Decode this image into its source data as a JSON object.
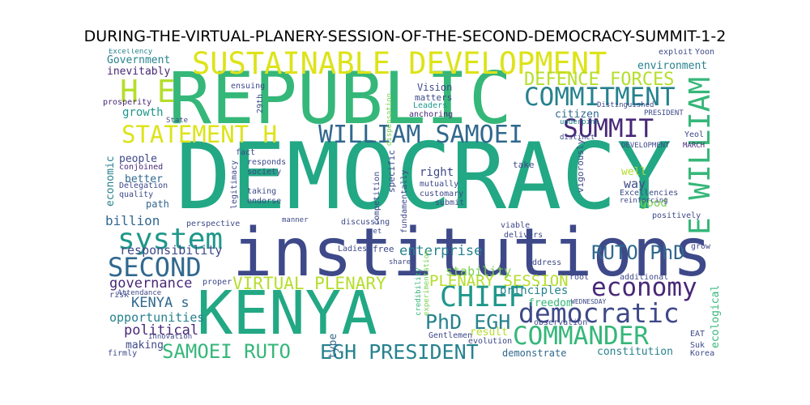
{
  "title": "DURING-THE-VIRTUAL-PLANERY-SESSION-OF-THE-SECOND-DEMOCRACY-SUMMIT-1-2",
  "words": {
    "democracy": "DEMOCRACY",
    "republic": "REPUBLIC",
    "institutions": "institutions",
    "kenya": "KENYA",
    "sustainable_development": "SUSTAINABLE DEVELOPMENT",
    "h_e": "H E",
    "commitment": "COMMITMENT",
    "defence_forces": "DEFENCE FORCES",
    "william_samoei": "WILLIAM SAMOEI",
    "statement_h": "STATEMENT H",
    "summit": "SUMMIT",
    "e_william": "E WILLIAM",
    "system": "system",
    "second": "SECOND",
    "ruto_phd": "RUTO PhD",
    "economy": "economy",
    "chief": "CHIEF",
    "democratic": "democratic",
    "phd_egh": "PhD EGH",
    "commander": "COMMANDER",
    "egh_president": "EGH PRESIDENT",
    "samoei_ruto": "SAMOEI RUTO",
    "virtual_plenary": "VIRTUAL PLENARY",
    "plenary_session": "PLENARY SESSION",
    "governance": "governance",
    "kenya_s": "KENYA s",
    "political": "political",
    "opportunities": "opportunities",
    "responsibility": "responsibility",
    "billion": "billion",
    "enterprise": "enterprise",
    "stability": "stability",
    "principles": "principles",
    "freedom": "freedom",
    "constitution": "constitution",
    "demonstrate": "demonstrate",
    "result": "result",
    "type": "type",
    "making": "making",
    "good": "good",
    "way": "way",
    "well": "well",
    "right": "right",
    "growth": "growth",
    "citizen": "citizen",
    "environment": "environment",
    "economic": "economic",
    "ecological": "ecological",
    "government": "Government",
    "inevitably": "inevitably",
    "prosperity": "prosperity",
    "people": "people",
    "better": "better",
    "path": "path",
    "vision": "Vision",
    "matters": "matters",
    "leaders": "Leaders",
    "anchoring": "anchoring",
    "ensuing": "ensuing",
    "29th": "29th",
    "excellency": "Excellency",
    "exploit": "exploit",
    "yoon": "Yoon",
    "distinguished": "Distinguished",
    "president": "PRESIDENT",
    "yeol": "Yeol",
    "development": "DEVELOPMENT",
    "march": "MARCH",
    "distinct": "distinct",
    "underpins": "underpins",
    "vigorously": "vigorously",
    "take": "take",
    "excellencies": "Excellencies",
    "reinforcing": "reinforcing",
    "positively": "positively",
    "additional": "additional",
    "address": "address",
    "viable": "viable",
    "delivers": "delivers",
    "submit": "submit",
    "customary": "customary",
    "mutually": "mutually",
    "fundamentally": "fundamentally",
    "specific": "specific",
    "competition": "competition",
    "free": "free",
    "shared": "shared",
    "discussing": "discussing",
    "set": "set",
    "ladies": "Ladies",
    "gentlemen": "Gentlemen",
    "evolution": "evolution",
    "observation": "observation",
    "wednesday": "WEDNESDAY",
    "root": "root",
    "suk": "Suk",
    "korea": "Korea",
    "eat": "EAT",
    "grow": "grow",
    "fact": "fact",
    "responds": "responds",
    "society": "society",
    "taking": "taking",
    "endorse": "endorse",
    "legitimacy": "legitimacy",
    "conjoined": "conjoined",
    "quality": "quality",
    "delegation": "Delegation",
    "perspective": "perspective",
    "manner": "manner",
    "proper": "proper",
    "risk": "risk",
    "attendance": "Attendance",
    "innovation": "innovation",
    "firmly": "firmly",
    "credibility": "credibility",
    "experimentation": "experimentation",
    "dispensation": "dispensation",
    "state": "State"
  },
  "colors": {
    "yellow": "#dde318",
    "lime": "#b5de2b",
    "green": "#7ad151",
    "teal_green": "#35b779",
    "teal": "#22a884",
    "mid_teal": "#1f988b",
    "blue_teal": "#26828e",
    "slate": "#31688e",
    "indigo": "#3e4989",
    "purple": "#482878",
    "dark_purple": "#440154"
  }
}
